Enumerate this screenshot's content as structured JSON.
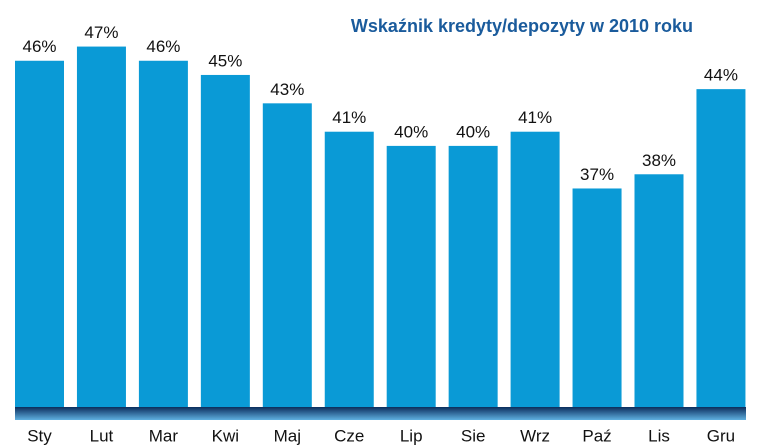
{
  "chart_data": {
    "type": "bar",
    "title": "Wskaźnik kredyty/depozyty w 2010 roku",
    "categories": [
      "Sty",
      "Lut",
      "Mar",
      "Kwi",
      "Maj",
      "Cze",
      "Lip",
      "Sie",
      "Wrz",
      "Paź",
      "Lis",
      "Gru"
    ],
    "values": [
      46,
      47,
      46,
      45,
      43,
      41,
      40,
      40,
      41,
      37,
      38,
      44
    ],
    "value_labels": [
      "46%",
      "47%",
      "46%",
      "45%",
      "43%",
      "41%",
      "40%",
      "40%",
      "41%",
      "37%",
      "38%",
      "44%"
    ],
    "color": "#0a9ad6",
    "ylim": [
      21.6,
      50
    ]
  }
}
